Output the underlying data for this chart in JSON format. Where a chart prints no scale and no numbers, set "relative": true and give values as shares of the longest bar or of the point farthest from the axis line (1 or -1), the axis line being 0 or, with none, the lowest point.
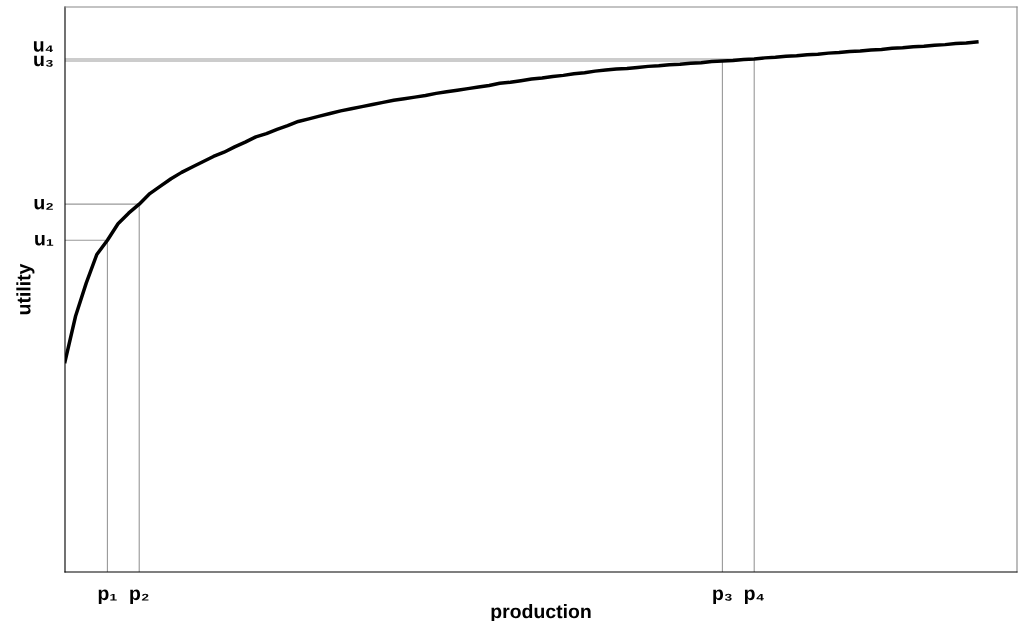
{
  "chart_data": {
    "type": "line",
    "xlabel": "production",
    "ylabel": "utility",
    "relative": true,
    "marker": "none",
    "line_style": "solid",
    "categories": [
      null,
      null,
      null,
      null,
      "p₁",
      null,
      null,
      "p₂",
      null,
      null,
      null,
      null,
      null,
      null,
      null,
      null,
      null,
      null,
      null,
      null,
      null,
      null,
      null,
      null,
      null,
      null,
      null,
      null,
      null,
      null,
      null,
      null,
      null,
      null,
      null,
      null,
      null,
      null,
      null,
      null,
      null,
      null,
      null,
      null,
      null,
      null,
      null,
      null,
      null,
      null,
      null,
      null,
      null,
      null,
      null,
      null,
      null,
      null,
      null,
      null,
      null,
      null,
      "p₃",
      null,
      null,
      "p₄",
      null,
      null,
      null,
      null,
      null,
      null,
      null,
      null,
      null,
      null,
      null,
      null,
      null,
      null,
      null,
      null,
      null,
      null,
      null,
      null,
      null
    ],
    "series": [
      {
        "color": "#000000",
        "values": [
          0.397,
          0.483,
          0.545,
          0.599,
          0.626,
          0.657,
          0.677,
          0.694,
          0.714,
          0.728,
          0.742,
          0.754,
          0.764,
          0.774,
          0.784,
          0.792,
          0.802,
          0.811,
          0.821,
          0.827,
          0.835,
          0.842,
          0.85,
          0.855,
          0.86,
          0.865,
          0.87,
          0.874,
          0.878,
          0.882,
          0.886,
          0.89,
          0.893,
          0.896,
          0.899,
          0.903,
          0.906,
          0.909,
          0.912,
          0.915,
          0.918,
          0.922,
          0.924,
          0.927,
          0.93,
          0.932,
          0.935,
          0.937,
          0.94,
          0.942,
          0.945,
          0.947,
          0.949,
          0.95,
          0.952,
          0.954,
          0.955,
          0.957,
          0.958,
          0.96,
          0.961,
          0.963,
          0.964,
          0.965,
          0.967,
          0.968,
          0.97,
          0.971,
          0.973,
          0.974,
          0.976,
          0.977,
          0.979,
          0.98,
          0.982,
          0.983,
          0.985,
          0.986,
          0.988,
          0.989,
          0.991,
          0.992,
          0.994,
          0.995,
          0.997,
          0.998,
          1
        ]
      }
    ],
    "ref_lines": [
      {
        "axis": "x",
        "value": "p₁",
        "color": "#999999"
      },
      {
        "axis": "x",
        "value": "p₂",
        "color": "#999999"
      },
      {
        "axis": "x",
        "value": "p₃",
        "color": "#999999"
      },
      {
        "axis": "x",
        "value": "p₄",
        "color": "#999999"
      },
      {
        "axis": "y",
        "value": 0.626,
        "label": "u₁",
        "color": "#999999"
      },
      {
        "axis": "y",
        "value": 0.694,
        "label": "u₂",
        "color": "#999999"
      },
      {
        "axis": "y",
        "value": 0.964,
        "label": "u₃",
        "color": "#999999"
      },
      {
        "axis": "y",
        "value": 0.968,
        "label": "u₄",
        "color": "#999999"
      }
    ]
  }
}
